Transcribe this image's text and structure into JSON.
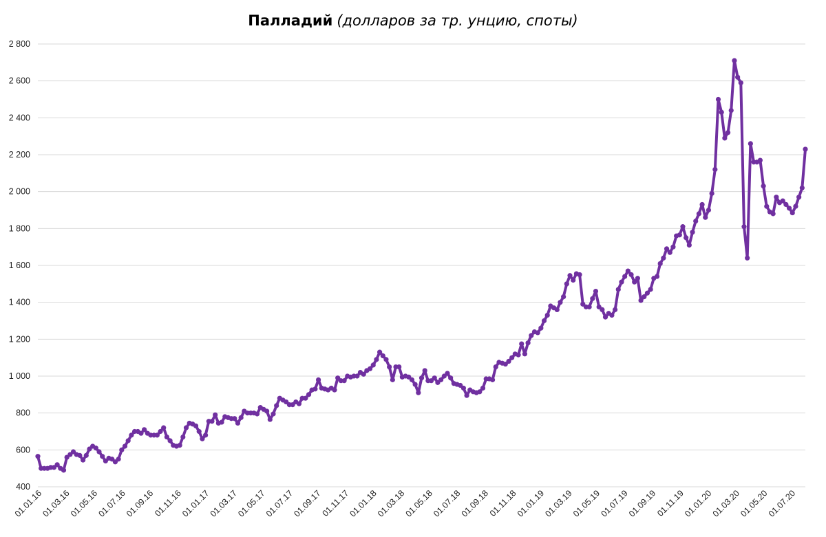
{
  "chart_data": {
    "type": "line",
    "title": "Палладий",
    "subtitle": "(долларов за тр. унцию, споты)",
    "xlabel": "",
    "ylabel": "",
    "ylim": [
      400,
      2800
    ],
    "y_ticks": [
      400,
      600,
      800,
      1000,
      1200,
      1400,
      1600,
      1800,
      2000,
      2200,
      2400,
      2600,
      2800
    ],
    "y_tick_labels": [
      "400",
      "600",
      "800",
      "1 000",
      "1 200",
      "1 400",
      "1 600",
      "1 800",
      "2 000",
      "2 200",
      "2 400",
      "2 600",
      "2 800"
    ],
    "x_tick_labels": [
      "01.01.16",
      "01.03.16",
      "01.05.16",
      "01.07.16",
      "01.09.16",
      "01.11.16",
      "01.01.17",
      "01.03.17",
      "01.05.17",
      "01.07.17",
      "01.09.17",
      "01.11.17",
      "01.01.18",
      "01.03.18",
      "01.05.18",
      "01.07.18",
      "01.09.18",
      "01.11.18",
      "01.01.19",
      "01.03.19",
      "01.05.19",
      "01.07.19",
      "01.09.19",
      "01.11.19",
      "01.01.20",
      "01.03.20",
      "01.05.20",
      "01.07.20"
    ],
    "grid": true,
    "legend": "none",
    "line_color": "#7030a0",
    "series": [
      {
        "values": [
          565,
          500,
          500,
          500,
          505,
          505,
          520,
          500,
          490,
          560,
          575,
          590,
          575,
          570,
          545,
          570,
          605,
          620,
          610,
          590,
          565,
          540,
          555,
          550,
          535,
          550,
          600,
          620,
          650,
          680,
          700,
          700,
          690,
          710,
          690,
          680,
          680,
          680,
          700,
          720,
          670,
          650,
          625,
          620,
          625,
          670,
          720,
          745,
          740,
          730,
          700,
          660,
          680,
          755,
          755,
          790,
          745,
          750,
          780,
          775,
          770,
          770,
          745,
          775,
          810,
          800,
          800,
          800,
          795,
          830,
          820,
          810,
          765,
          795,
          840,
          880,
          870,
          860,
          845,
          845,
          860,
          850,
          880,
          880,
          900,
          925,
          930,
          980,
          935,
          930,
          925,
          935,
          925,
          990,
          975,
          975,
          1000,
          995,
          1000,
          1000,
          1020,
          1010,
          1030,
          1040,
          1060,
          1090,
          1130,
          1110,
          1090,
          1050,
          980,
          1050,
          1050,
          995,
          1000,
          995,
          980,
          955,
          910,
          990,
          1030,
          975,
          975,
          990,
          965,
          980,
          1000,
          1015,
          990,
          960,
          955,
          950,
          935,
          895,
          925,
          915,
          910,
          915,
          935,
          985,
          985,
          980,
          1050,
          1075,
          1070,
          1065,
          1080,
          1100,
          1120,
          1115,
          1175,
          1120,
          1180,
          1220,
          1240,
          1235,
          1260,
          1300,
          1330,
          1380,
          1370,
          1360,
          1400,
          1430,
          1500,
          1545,
          1520,
          1555,
          1550,
          1390,
          1375,
          1375,
          1420,
          1460,
          1375,
          1360,
          1320,
          1340,
          1330,
          1360,
          1470,
          1510,
          1540,
          1570,
          1550,
          1510,
          1530,
          1410,
          1430,
          1450,
          1470,
          1530,
          1540,
          1610,
          1640,
          1690,
          1670,
          1700,
          1760,
          1765,
          1810,
          1750,
          1710,
          1780,
          1840,
          1880,
          1930,
          1860,
          1900,
          1990,
          2120,
          2500,
          2430,
          2290,
          2320,
          2440,
          2710,
          2620,
          2590,
          1810,
          1640,
          2260,
          2160,
          2160,
          2170,
          2030,
          1920,
          1890,
          1880,
          1970,
          1940,
          1950,
          1930,
          1910,
          1885,
          1920,
          1970,
          2020,
          2230
        ]
      }
    ]
  }
}
